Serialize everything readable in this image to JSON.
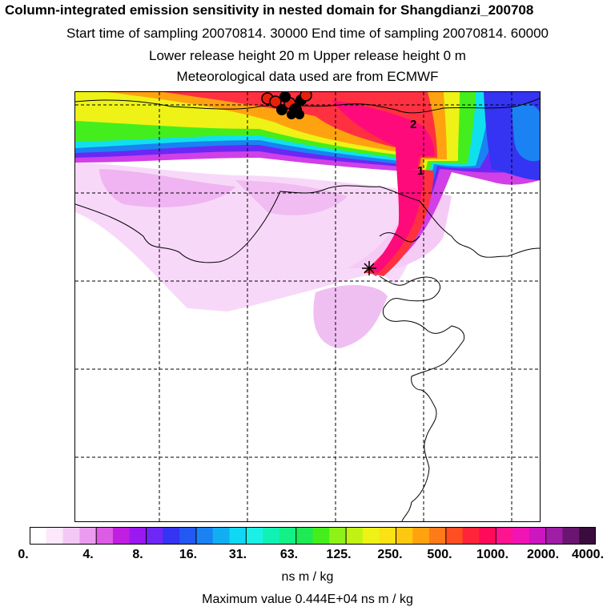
{
  "header": {
    "title": "Column-integrated emission sensitivity in nested domain for Shangdianzi_200708",
    "sampling": "Start time of sampling 20070814. 30000     End time of sampling 20070814. 60000",
    "release": "Lower release height   20 m          Upper release height    0 m",
    "meteo": "Meteorological data used are from ECMWF"
  },
  "map": {
    "contour_labels": [
      "2",
      "1"
    ],
    "colors": {
      "coast": "#000000",
      "grid": "#000000",
      "marker_outer": "#e8200a",
      "marker_inner": "#000000"
    }
  },
  "legend": {
    "tick_labels": [
      "0.",
      "4.",
      "8.",
      "16.",
      "31.",
      "63.",
      "125.",
      "250.",
      "500.",
      "1000.",
      "2000.",
      "4000."
    ],
    "colors": [
      "#ffffff",
      "#fbe8fb",
      "#f4c8f5",
      "#ec9cf0",
      "#dd5ce6",
      "#c01ee0",
      "#9a19f0",
      "#6d28f5",
      "#3434f2",
      "#2358f2",
      "#1a82f2",
      "#12aef2",
      "#10d8f4",
      "#1cf0e6",
      "#10f2b4",
      "#12f086",
      "#1eea54",
      "#44ee1c",
      "#8ef218",
      "#c2f214",
      "#eef216",
      "#fbe214",
      "#ffc810",
      "#ffa210",
      "#ff7a18",
      "#ff4e22",
      "#ff2438",
      "#ff0a5a",
      "#ff1490",
      "#f014b4",
      "#cc16c0",
      "#a01ea6",
      "#6a1670",
      "#3a0c3c"
    ],
    "units": "ns m / kg",
    "max_value": "Maximum value  0.444E+04 ns m / kg"
  }
}
